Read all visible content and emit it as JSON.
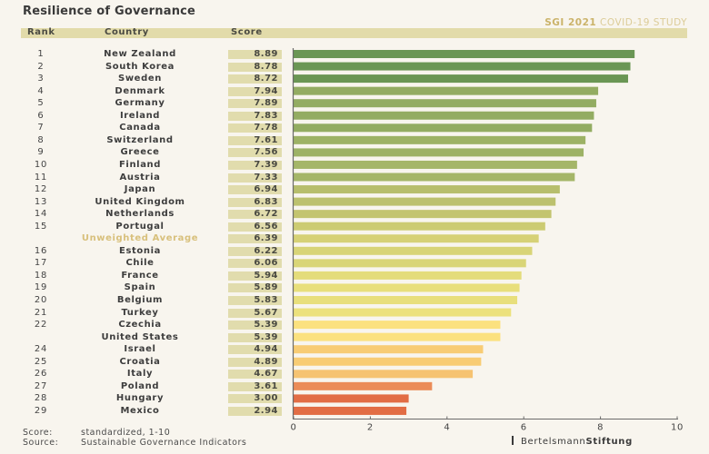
{
  "title": "Resilience of Governance",
  "study": {
    "bold": "SGI 2021",
    "rest": "COVID-19 STUDY"
  },
  "headers": {
    "rank": "Rank",
    "country": "Country",
    "score": "Score"
  },
  "footer": {
    "score_label": "Score:",
    "score_text": "standardized, 1-10",
    "source_label": "Source:",
    "source_text": "Sustainable Governance Indicators",
    "brand_regular": "Bertelsmann",
    "brand_bold": "Stiftung"
  },
  "chart_data": {
    "type": "bar",
    "orientation": "horizontal",
    "title": "Resilience of Governance",
    "subtitle": "SGI 2021 COVID-19 STUDY",
    "xlabel": "",
    "ylabel": "",
    "xlim": [
      0,
      10
    ],
    "xticks": [
      "0",
      "2",
      "4",
      "6",
      "8",
      "10"
    ],
    "grid": false,
    "rows": [
      {
        "rank": "1",
        "country": "New Zealand",
        "score": 8.89,
        "score_text": "8.89",
        "color": "#6a9654"
      },
      {
        "rank": "2",
        "country": "South Korea",
        "score": 8.78,
        "score_text": "8.78",
        "color": "#6a9654"
      },
      {
        "rank": "3",
        "country": "Sweden",
        "score": 8.72,
        "score_text": "8.72",
        "color": "#6a9654"
      },
      {
        "rank": "4",
        "country": "Denmark",
        "score": 7.94,
        "score_text": "7.94",
        "color": "#93ac62"
      },
      {
        "rank": "5",
        "country": "Germany",
        "score": 7.89,
        "score_text": "7.89",
        "color": "#93ac62"
      },
      {
        "rank": "6",
        "country": "Ireland",
        "score": 7.83,
        "score_text": "7.83",
        "color": "#93ac62"
      },
      {
        "rank": "7",
        "country": "Canada",
        "score": 7.78,
        "score_text": "7.78",
        "color": "#93ac62"
      },
      {
        "rank": "8",
        "country": "Switzerland",
        "score": 7.61,
        "score_text": "7.61",
        "color": "#9db265"
      },
      {
        "rank": "9",
        "country": "Greece",
        "score": 7.56,
        "score_text": "7.56",
        "color": "#9db265"
      },
      {
        "rank": "10",
        "country": "Finland",
        "score": 7.39,
        "score_text": "7.39",
        "color": "#a5b668"
      },
      {
        "rank": "11",
        "country": "Austria",
        "score": 7.33,
        "score_text": "7.33",
        "color": "#a5b668"
      },
      {
        "rank": "12",
        "country": "Japan",
        "score": 6.94,
        "score_text": "6.94",
        "color": "#b7be6c"
      },
      {
        "rank": "13",
        "country": "United Kingdom",
        "score": 6.83,
        "score_text": "6.83",
        "color": "#bcc16e"
      },
      {
        "rank": "14",
        "country": "Netherlands",
        "score": 6.72,
        "score_text": "6.72",
        "color": "#c3c46f"
      },
      {
        "rank": "15",
        "country": "Portugal",
        "score": 6.56,
        "score_text": "6.56",
        "color": "#cccb72"
      },
      {
        "rank": "",
        "country": "Unweighted Average",
        "score": 6.39,
        "score_text": "6.39",
        "color": "#d6d176",
        "is_average": true
      },
      {
        "rank": "16",
        "country": "Estonia",
        "score": 6.22,
        "score_text": "6.22",
        "color": "#d8d477"
      },
      {
        "rank": "17",
        "country": "Chile",
        "score": 6.06,
        "score_text": "6.06",
        "color": "#d9d577"
      },
      {
        "rank": "18",
        "country": "France",
        "score": 5.94,
        "score_text": "5.94",
        "color": "#e4dc7b"
      },
      {
        "rank": "19",
        "country": "Spain",
        "score": 5.89,
        "score_text": "5.89",
        "color": "#e8df7c"
      },
      {
        "rank": "20",
        "country": "Belgium",
        "score": 5.83,
        "score_text": "5.83",
        "color": "#e8df7c"
      },
      {
        "rank": "21",
        "country": "Turkey",
        "score": 5.67,
        "score_text": "5.67",
        "color": "#ece17d"
      },
      {
        "rank": "22",
        "country": "Czechia",
        "score": 5.39,
        "score_text": "5.39",
        "color": "#fbe17f"
      },
      {
        "rank": "",
        "country": "United States",
        "score": 5.39,
        "score_text": "5.39",
        "color": "#fbe17f"
      },
      {
        "rank": "24",
        "country": "Israel",
        "score": 4.94,
        "score_text": "4.94",
        "color": "#f8cc74"
      },
      {
        "rank": "25",
        "country": "Croatia",
        "score": 4.89,
        "score_text": "4.89",
        "color": "#f8cc74"
      },
      {
        "rank": "26",
        "country": "Italy",
        "score": 4.67,
        "score_text": "4.67",
        "color": "#f6c372"
      },
      {
        "rank": "27",
        "country": "Poland",
        "score": 3.61,
        "score_text": "3.61",
        "color": "#eb8c58"
      },
      {
        "rank": "28",
        "country": "Hungary",
        "score": 3.0,
        "score_text": "3.00",
        "color": "#e26d45"
      },
      {
        "rank": "29",
        "country": "Mexico",
        "score": 2.94,
        "score_text": "2.94",
        "color": "#e26d45"
      }
    ]
  }
}
